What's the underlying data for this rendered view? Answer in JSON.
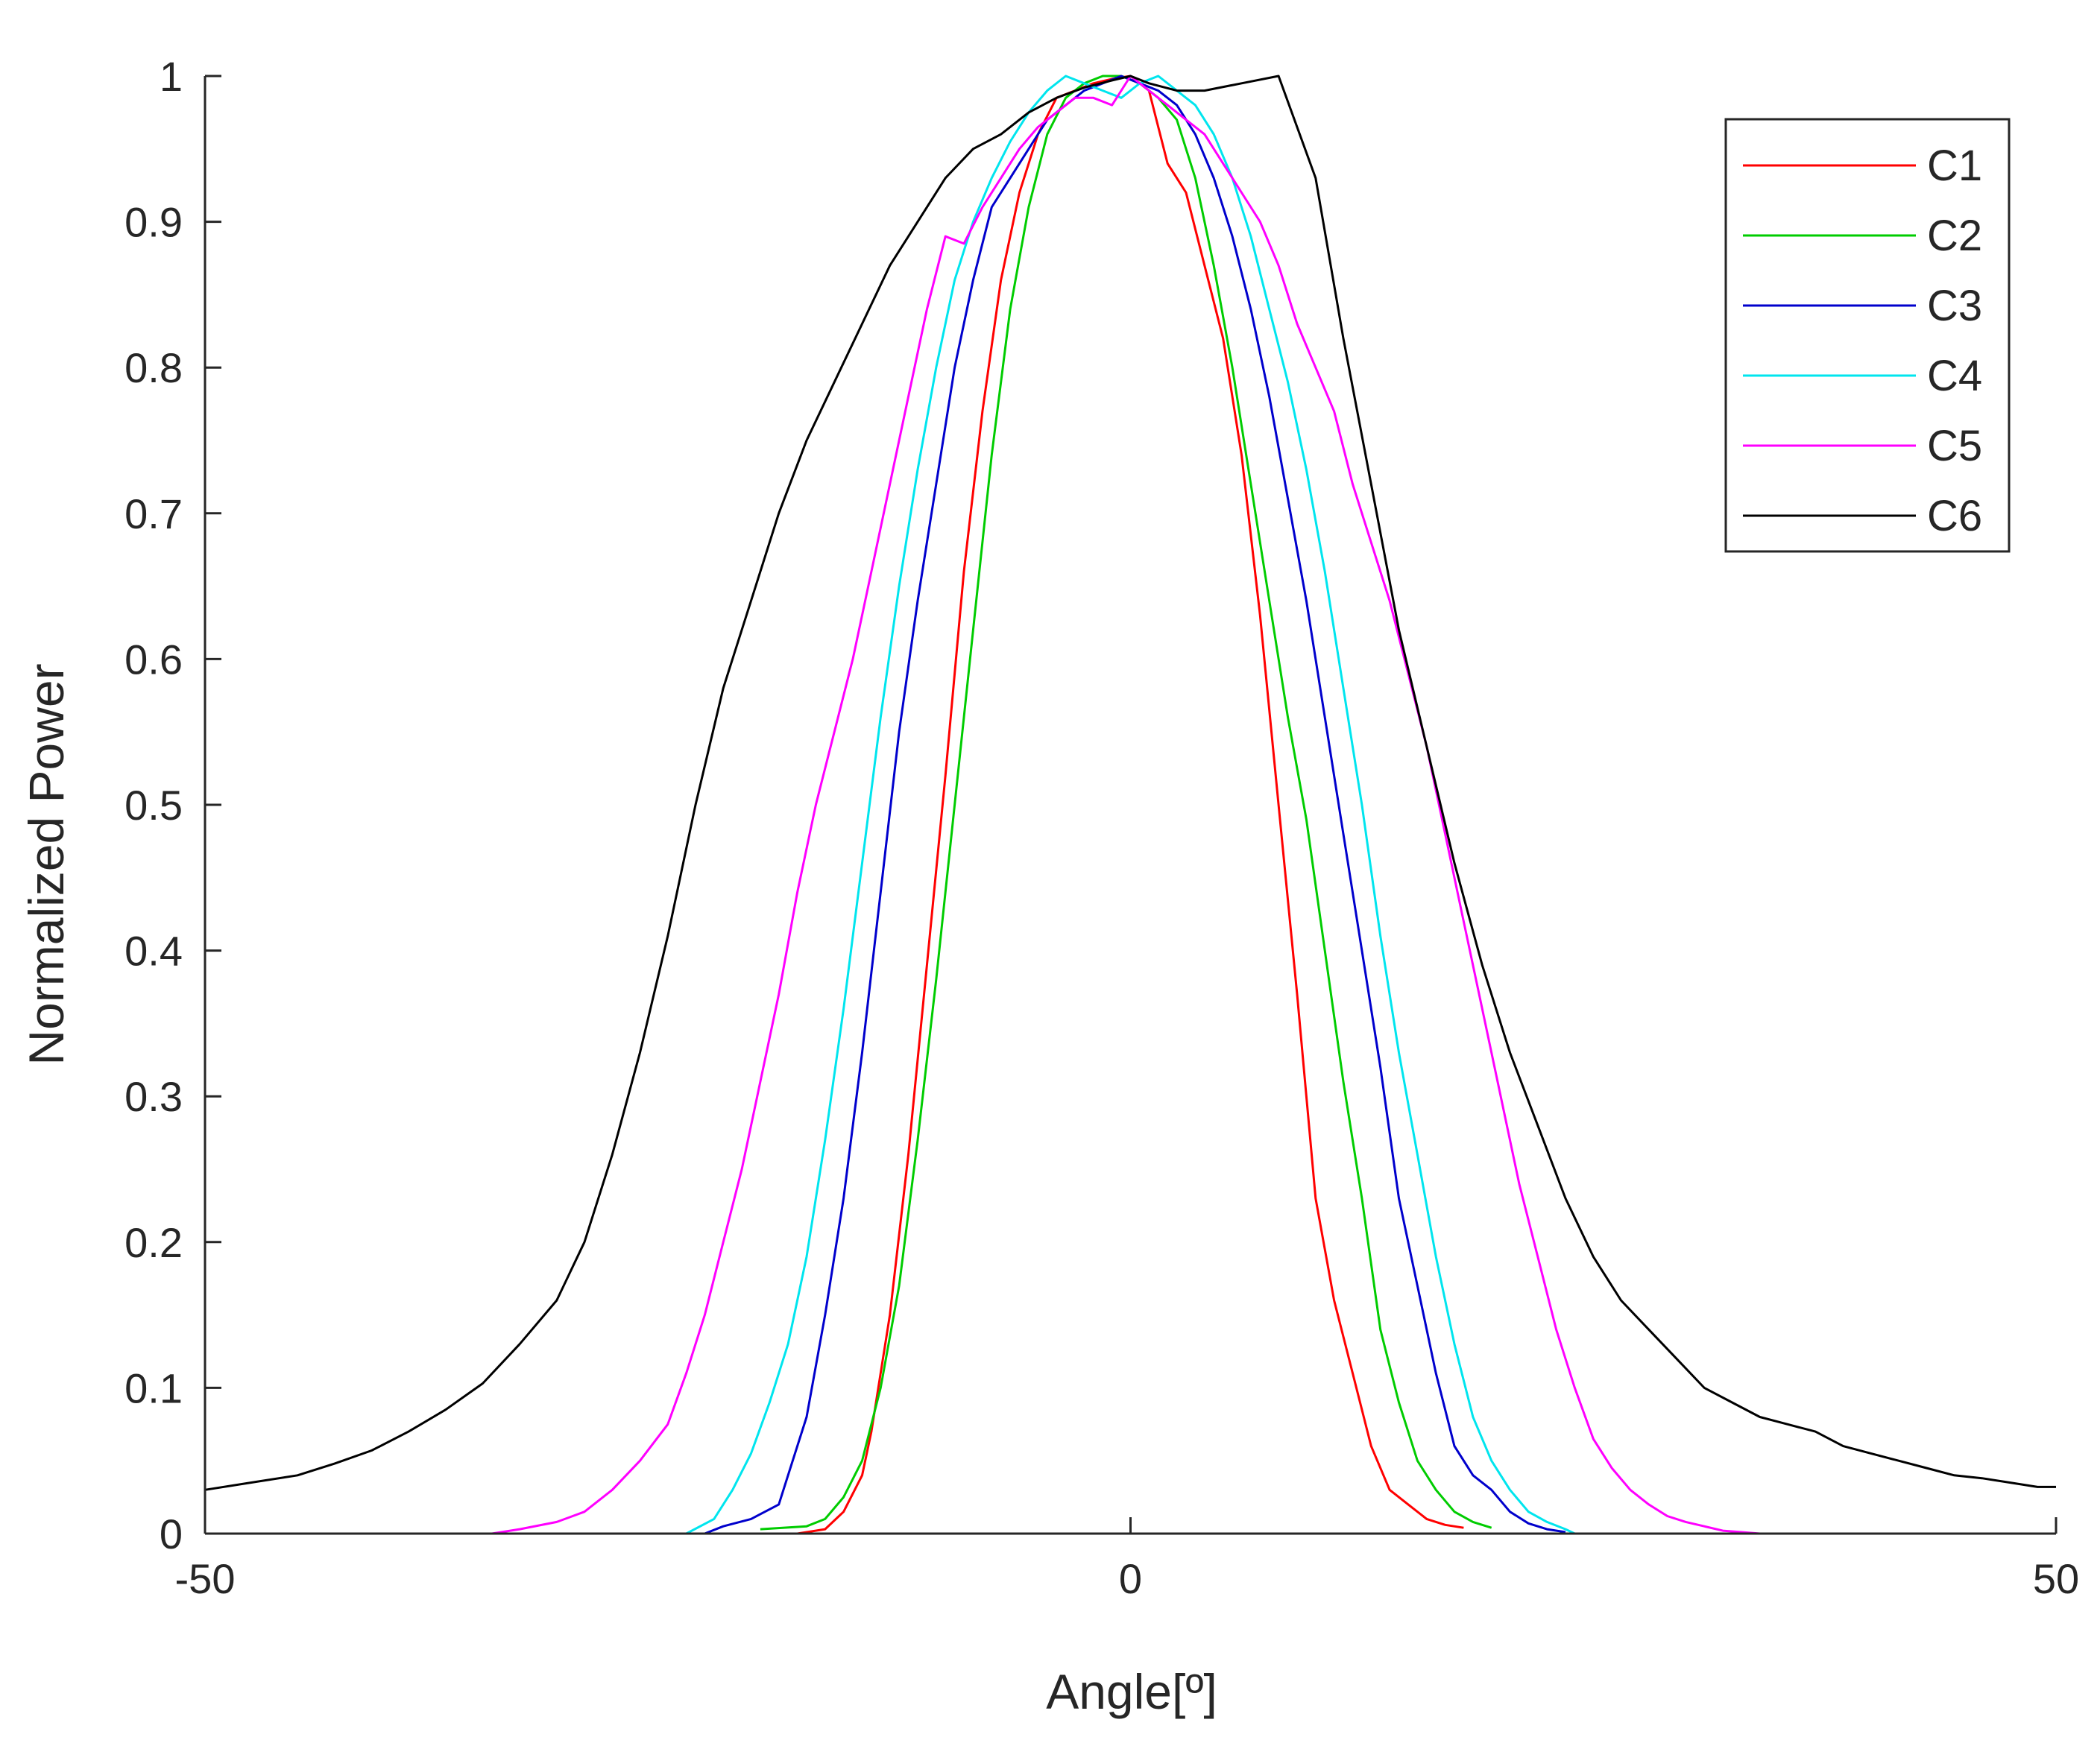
{
  "chart_data": {
    "type": "line",
    "title": "",
    "xlabel": "Angle[º]",
    "ylabel": "Normalized Power",
    "xlim": [
      -50,
      50
    ],
    "ylim": [
      0,
      1
    ],
    "xticks": [
      -50,
      0,
      50
    ],
    "yticks": [
      0,
      0.1,
      0.2,
      0.3,
      0.4,
      0.5,
      0.6,
      0.7,
      0.8,
      0.9,
      1
    ],
    "xtick_labels": [
      "-50",
      "0",
      "50"
    ],
    "ytick_labels": [
      "0",
      "0.1",
      "0.2",
      "0.3",
      "0.4",
      "0.5",
      "0.6",
      "0.7",
      "0.8",
      "0.9",
      "1"
    ],
    "grid": false,
    "legend_position": "top-right",
    "series": [
      {
        "name": "C1",
        "color": "#ff0000",
        "x": [
          -18,
          -16.5,
          -15.5,
          -14.5,
          -14,
          -13,
          -12,
          -11,
          -10,
          -9,
          -8,
          -7,
          -6,
          -5,
          -4,
          -3,
          -2,
          -1,
          0,
          1,
          2,
          3,
          4,
          5,
          6,
          7,
          8,
          9,
          10,
          11,
          12,
          13,
          14,
          15,
          16,
          17,
          18
        ],
        "y": [
          0.0,
          0.003,
          0.015,
          0.04,
          0.07,
          0.15,
          0.26,
          0.39,
          0.52,
          0.66,
          0.77,
          0.86,
          0.92,
          0.96,
          0.985,
          0.99,
          0.995,
          0.998,
          1.0,
          0.99,
          0.94,
          0.92,
          0.87,
          0.82,
          0.74,
          0.63,
          0.5,
          0.37,
          0.23,
          0.16,
          0.11,
          0.06,
          0.03,
          0.02,
          0.01,
          0.006,
          0.004
        ]
      },
      {
        "name": "C2",
        "color": "#00cc00",
        "x": [
          -20,
          -17.5,
          -16.5,
          -15.5,
          -14.5,
          -13.5,
          -12.5,
          -11.5,
          -10.5,
          -9.5,
          -8.5,
          -7.5,
          -6.5,
          -5.5,
          -4.5,
          -3.5,
          -2.5,
          -1.5,
          -0.5,
          0.5,
          1.5,
          2.5,
          3.5,
          4.5,
          5.5,
          6.5,
          7.5,
          8.5,
          9.5,
          10.5,
          11.5,
          12.5,
          13.5,
          14.5,
          15.5,
          16.5,
          17.5,
          18.5,
          19.5
        ],
        "y": [
          0.003,
          0.005,
          0.01,
          0.025,
          0.05,
          0.1,
          0.17,
          0.27,
          0.38,
          0.5,
          0.62,
          0.74,
          0.84,
          0.91,
          0.96,
          0.985,
          0.995,
          1.0,
          1.0,
          0.995,
          0.985,
          0.97,
          0.93,
          0.87,
          0.8,
          0.72,
          0.64,
          0.56,
          0.49,
          0.4,
          0.31,
          0.23,
          0.14,
          0.09,
          0.05,
          0.03,
          0.015,
          0.008,
          0.004
        ]
      },
      {
        "name": "C3",
        "color": "#0000cc",
        "x": [
          -23,
          -22,
          -20.5,
          -19,
          -18.5,
          -17.5,
          -16.5,
          -15.5,
          -14.5,
          -13.5,
          -12.5,
          -11.5,
          -10.5,
          -9.5,
          -8.5,
          -7.5,
          -6.5,
          -5.5,
          -4.5,
          -3.5,
          -2.5,
          -1.5,
          -0.5,
          0.5,
          1.5,
          2.5,
          3.5,
          4.5,
          5.5,
          6.5,
          7.5,
          8.5,
          9.5,
          10.5,
          11.5,
          12.5,
          13.5,
          14.5,
          15.5,
          16.5,
          17.5,
          18.5,
          19.5,
          20.5,
          21.5,
          22.5,
          23.5
        ],
        "y": [
          0.0,
          0.005,
          0.01,
          0.02,
          0.04,
          0.08,
          0.15,
          0.23,
          0.33,
          0.44,
          0.55,
          0.64,
          0.72,
          0.8,
          0.86,
          0.91,
          0.93,
          0.95,
          0.97,
          0.98,
          0.99,
          0.995,
          1.0,
          0.995,
          0.99,
          0.98,
          0.96,
          0.93,
          0.89,
          0.84,
          0.78,
          0.71,
          0.64,
          0.56,
          0.48,
          0.4,
          0.32,
          0.23,
          0.17,
          0.11,
          0.06,
          0.04,
          0.03,
          0.015,
          0.007,
          0.003,
          0.001
        ]
      },
      {
        "name": "C4",
        "color": "#00e5ee",
        "x": [
          -24,
          -22.5,
          -21.5,
          -20.5,
          -19.5,
          -18.5,
          -17.5,
          -16.5,
          -15.5,
          -14.5,
          -13.5,
          -12.5,
          -11.5,
          -10.5,
          -9.5,
          -8.5,
          -7.5,
          -6.5,
          -5.5,
          -4.5,
          -3.5,
          -2.5,
          -1.5,
          -0.5,
          0.5,
          1.5,
          2.5,
          3.5,
          4.5,
          5.5,
          6.5,
          7.5,
          8.5,
          9.5,
          10.5,
          11.5,
          12.5,
          13.5,
          14.5,
          15.5,
          16.5,
          17.5,
          18.5,
          19.5,
          20.5,
          21.5,
          22.5,
          23.5,
          24
        ],
        "y": [
          0.0,
          0.01,
          0.03,
          0.055,
          0.09,
          0.13,
          0.19,
          0.27,
          0.36,
          0.46,
          0.56,
          0.65,
          0.73,
          0.8,
          0.86,
          0.9,
          0.93,
          0.955,
          0.975,
          0.99,
          1.0,
          0.995,
          0.99,
          0.985,
          0.995,
          1.0,
          0.99,
          0.98,
          0.96,
          0.93,
          0.89,
          0.84,
          0.79,
          0.73,
          0.66,
          0.58,
          0.5,
          0.41,
          0.33,
          0.26,
          0.19,
          0.13,
          0.08,
          0.05,
          0.03,
          0.015,
          0.008,
          0.003,
          0.0
        ]
      },
      {
        "name": "C5",
        "color": "#ff00ff",
        "x": [
          -34.5,
          -33,
          -31,
          -29.5,
          -28,
          -26.5,
          -25,
          -24,
          -23,
          -22,
          -21,
          -20,
          -19,
          -18,
          -17,
          -16,
          -15,
          -14,
          -13,
          -12,
          -11,
          -10,
          -9,
          -8,
          -7,
          -6,
          -5,
          -4,
          -3,
          -2,
          -1,
          0,
          1,
          2,
          3,
          4,
          5,
          6,
          7,
          8,
          9,
          10,
          11,
          12,
          13,
          14,
          15,
          16,
          17,
          18,
          19,
          20,
          21,
          22,
          23,
          24,
          25,
          26,
          27,
          28,
          29,
          30,
          31,
          32,
          33,
          34
        ],
        "y": [
          0.0,
          0.003,
          0.008,
          0.015,
          0.03,
          0.05,
          0.075,
          0.11,
          0.15,
          0.2,
          0.25,
          0.31,
          0.37,
          0.44,
          0.5,
          0.55,
          0.6,
          0.66,
          0.72,
          0.78,
          0.84,
          0.89,
          0.885,
          0.91,
          0.93,
          0.95,
          0.965,
          0.975,
          0.985,
          0.985,
          0.98,
          1.0,
          0.99,
          0.98,
          0.97,
          0.96,
          0.94,
          0.92,
          0.9,
          0.87,
          0.83,
          0.8,
          0.77,
          0.72,
          0.68,
          0.64,
          0.59,
          0.54,
          0.48,
          0.42,
          0.36,
          0.3,
          0.24,
          0.19,
          0.14,
          0.1,
          0.065,
          0.045,
          0.03,
          0.02,
          0.012,
          0.008,
          0.005,
          0.002,
          0.001,
          0.0
        ]
      },
      {
        "name": "C6",
        "color": "#000000",
        "x": [
          -50,
          -47.5,
          -45,
          -43,
          -41,
          -39,
          -37,
          -35,
          -33,
          -31,
          -29.5,
          -28,
          -26.5,
          -25,
          -23.5,
          -22,
          -20.5,
          -19,
          -17.5,
          -16,
          -14.5,
          -13,
          -11.5,
          -10,
          -8.5,
          -7,
          -5.5,
          -4,
          -2.5,
          -1,
          0,
          1,
          2.5,
          4,
          6,
          8,
          10,
          11.5,
          13,
          14.5,
          16,
          17.5,
          19,
          20.5,
          22,
          23.5,
          25,
          26.5,
          28,
          29.5,
          31,
          32.5,
          34,
          35.5,
          37,
          38.5,
          40,
          41.5,
          43,
          44.5,
          46,
          47.5,
          49,
          50
        ],
        "y": [
          0.03,
          0.035,
          0.04,
          0.048,
          0.057,
          0.07,
          0.085,
          0.103,
          0.13,
          0.16,
          0.2,
          0.26,
          0.33,
          0.41,
          0.5,
          0.58,
          0.64,
          0.7,
          0.75,
          0.79,
          0.83,
          0.87,
          0.9,
          0.93,
          0.95,
          0.96,
          0.975,
          0.985,
          0.992,
          0.997,
          1.0,
          0.995,
          0.99,
          0.99,
          0.995,
          1.0,
          0.93,
          0.82,
          0.72,
          0.62,
          0.54,
          0.46,
          0.39,
          0.33,
          0.28,
          0.23,
          0.19,
          0.16,
          0.14,
          0.12,
          0.1,
          0.09,
          0.08,
          0.075,
          0.07,
          0.06,
          0.055,
          0.05,
          0.045,
          0.04,
          0.038,
          0.035,
          0.032,
          0.032
        ]
      }
    ]
  }
}
